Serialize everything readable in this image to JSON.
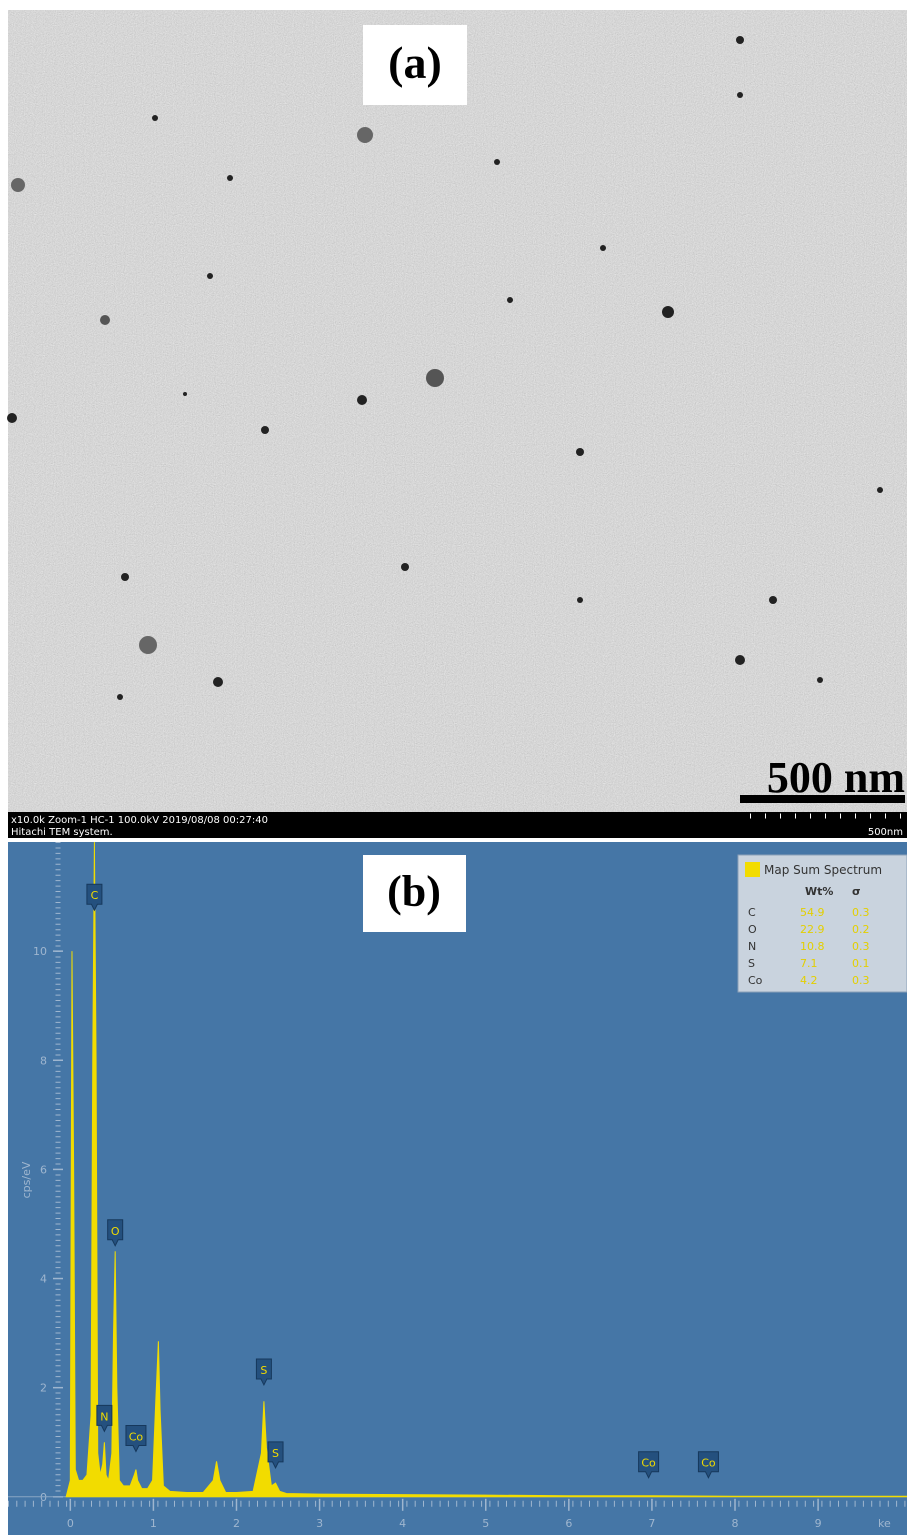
{
  "image_panel": {
    "label": "(a)",
    "scale_text": "500 nm",
    "footer_line1": "x10.0k Zoom-1 HC-1 100.0kV 2019/08/08 00:27:40",
    "footer_line2": "Hitachi TEM system.",
    "footer_scale": "500nm"
  },
  "chart_data": {
    "type": "area",
    "label": "(b)",
    "ylabel": "cps/eV",
    "xlabel": "ke",
    "x": [
      -0.05,
      0.0,
      0.02,
      0.04,
      0.06,
      0.1,
      0.15,
      0.2,
      0.25,
      0.27,
      0.29,
      0.31,
      0.33,
      0.36,
      0.39,
      0.41,
      0.43,
      0.46,
      0.5,
      0.52,
      0.54,
      0.56,
      0.59,
      0.64,
      0.72,
      0.77,
      0.79,
      0.81,
      0.86,
      0.93,
      0.99,
      1.03,
      1.06,
      1.08,
      1.12,
      1.2,
      1.4,
      1.6,
      1.72,
      1.76,
      1.8,
      1.87,
      2.0,
      2.2,
      2.3,
      2.33,
      2.36,
      2.42,
      2.47,
      2.52,
      2.6,
      3.0,
      4.0,
      5.0,
      6.0,
      7.0,
      8.0,
      9.0,
      10.07
    ],
    "series": [
      {
        "name": "Map Sum Spectrum",
        "color": "#f2dc00",
        "values": [
          0,
          0.3,
          10.0,
          6,
          0.5,
          0.3,
          0.3,
          0.4,
          1.5,
          8,
          12.0,
          8,
          0.8,
          0.4,
          0.6,
          1.0,
          0.4,
          0.3,
          0.8,
          3,
          4.5,
          2,
          0.3,
          0.2,
          0.2,
          0.4,
          0.5,
          0.3,
          0.15,
          0.15,
          0.3,
          1.8,
          2.85,
          1.6,
          0.2,
          0.1,
          0.08,
          0.08,
          0.3,
          0.65,
          0.3,
          0.08,
          0.08,
          0.1,
          0.8,
          1.75,
          0.9,
          0.2,
          0.25,
          0.1,
          0.06,
          0.05,
          0.04,
          0.03,
          0.02,
          0.02,
          0.01,
          0.01,
          0.01
        ]
      }
    ],
    "xlim": [
      -0.75,
      10.07
    ],
    "ylim": [
      -0.7,
      12.0
    ],
    "xticks": [
      0,
      1,
      2,
      3,
      4,
      5,
      6,
      7,
      8,
      9
    ],
    "yticks": [
      0,
      2,
      4,
      6,
      8,
      10
    ],
    "annotations": [
      {
        "text": "C",
        "x": 0.29,
        "y": 10.75
      },
      {
        "text": "O",
        "x": 0.54,
        "y": 4.6
      },
      {
        "text": "N",
        "x": 0.41,
        "y": 1.2
      },
      {
        "text": "Co",
        "x": 0.79,
        "y": 0.83
      },
      {
        "text": "S",
        "x": 2.33,
        "y": 2.05
      },
      {
        "text": "S",
        "x": 2.47,
        "y": 0.53
      },
      {
        "text": "Co",
        "x": 6.96,
        "y": 0.35
      },
      {
        "text": "Co",
        "x": 7.68,
        "y": 0.35
      }
    ],
    "legend_table": {
      "headers": [
        "Wt%",
        "σ"
      ],
      "rows": [
        [
          "C",
          54.9,
          0.3
        ],
        [
          "O",
          22.9,
          0.2
        ],
        [
          "N",
          10.8,
          0.3
        ],
        [
          "S",
          7.1,
          0.1
        ],
        [
          "Co",
          4.2,
          0.3
        ]
      ]
    }
  }
}
